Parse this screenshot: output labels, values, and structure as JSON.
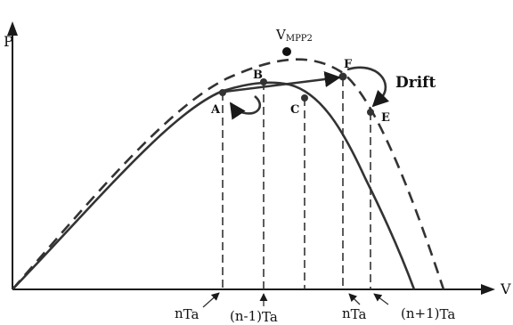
{
  "axes": {
    "y_label": "P",
    "x_label": "V"
  },
  "annotations": {
    "vmpp_main": "V",
    "vmpp_sub": "MPP2",
    "drift": "Drift"
  },
  "points": {
    "A": "A",
    "B": "B",
    "C": "C",
    "E": "E",
    "F": "F"
  },
  "ticks": {
    "t1_main": "n",
    "t1_sub": "Ta",
    "t2_main": "(n-1)",
    "t2_sub": "Ta",
    "t3_main": "n",
    "t3_sub": "Ta",
    "t4_main": "(n+1)",
    "t4_sub": "Ta"
  },
  "colors": {
    "ink": "#1a1a1a",
    "curve": "#333333"
  }
}
